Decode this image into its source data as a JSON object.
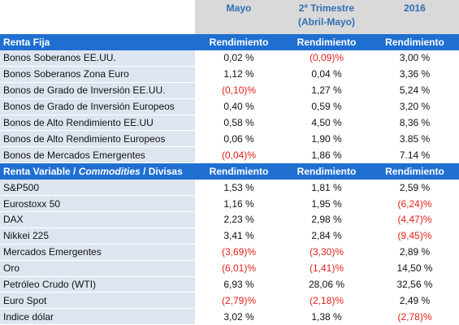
{
  "header": {
    "col1": "Mayo",
    "col2_line1": "2º Trimestre",
    "col2_line2": "(Abril-Mayo)",
    "col3": "2016"
  },
  "sections": [
    {
      "title": "Renta Fija",
      "column_labels": [
        "Rendimiento",
        "Rendimiento",
        "Rendimiento"
      ],
      "rows": [
        {
          "name": "Bonos Soberanos EE.UU.",
          "values": [
            "0,02 %",
            "(0,09)%",
            "3,00 %"
          ]
        },
        {
          "name": "Bonos Soberanos Zona Euro",
          "values": [
            "1,12 %",
            "0,04 %",
            "3,36 %"
          ]
        },
        {
          "name": "Bonos de Grado de Inversión EE.UU.",
          "values": [
            "(0,10)%",
            "1,27 %",
            "5,24 %"
          ]
        },
        {
          "name": "Bonos de Grado de Inversión Europeos",
          "values": [
            "0,40 %",
            "0,59 %",
            "3,20 %"
          ]
        },
        {
          "name": "Bonos de Alto Rendimiento EE.UU",
          "values": [
            "0,58 %",
            "4,50 %",
            "8,36 %"
          ]
        },
        {
          "name": "Bonos de Alto Rendimiento Europeos",
          "values": [
            "0,06 %",
            "1,90 %",
            "3.85 %"
          ]
        },
        {
          "name": "Bonos de Mercados Emergentes",
          "values": [
            "(0,04)%",
            "1,86 %",
            "7.14 %"
          ]
        }
      ]
    },
    {
      "title_part1": "Renta Variable / ",
      "title_part2": "Commodities",
      "title_part3": " / Divisas",
      "column_labels": [
        "Rendimiento",
        "Rendimiento",
        "Rendimiento"
      ],
      "rows": [
        {
          "name": "S&P500",
          "values": [
            "1,53 %",
            "1,81 %",
            "2,59 %"
          ]
        },
        {
          "name": "Eurostoxx 50",
          "values": [
            "1,16 %",
            "1,95 %",
            "(6,24)%"
          ]
        },
        {
          "name": "DAX",
          "values": [
            "2,23 %",
            "2,98 %",
            "(4,47)%"
          ]
        },
        {
          "name": "Nikkei 225",
          "values": [
            "3,41 %",
            "2,84 %",
            "(9,45)%"
          ]
        },
        {
          "name": "Mercados Emergentes",
          "values": [
            "(3,69)%",
            "(3,30)%",
            "2,89 %"
          ]
        },
        {
          "name": "Oro",
          "values": [
            "(6,01)%",
            "(1,41)%",
            "14,50 %"
          ]
        },
        {
          "name": "Petróleo Crudo (WTI)",
          "values": [
            "6,93 %",
            "28,06 %",
            "32,56 %"
          ]
        },
        {
          "name": "Euro Spot",
          "values": [
            "(2,79)%",
            "(2,18)%",
            "2,49 %"
          ]
        },
        {
          "name": "Indice dólar",
          "values": [
            "3,02 %",
            "1,38 %",
            "(2,78)%"
          ]
        }
      ]
    }
  ],
  "colors": {
    "header_text": "#2f6fb3",
    "header_bg": "#d9d9d9",
    "section_bg": "#1f6fd1",
    "label_bg": "#dde6f0",
    "negative": "#e0201b"
  }
}
